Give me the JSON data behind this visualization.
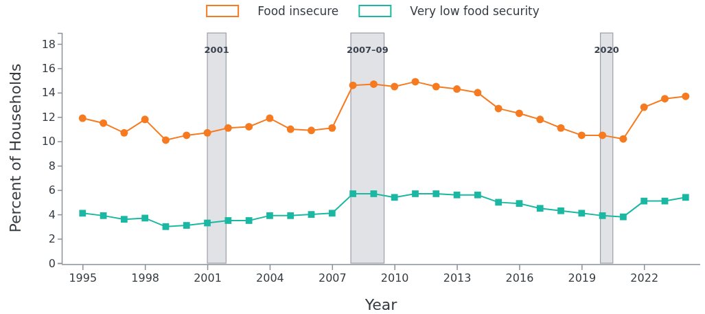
{
  "chart_data": {
    "type": "line",
    "xlabel": "Year",
    "ylabel": "Percent of Households",
    "x": [
      1995,
      1996,
      1997,
      1998,
      1999,
      2000,
      2001,
      2002,
      2003,
      2004,
      2005,
      2006,
      2007,
      2008,
      2009,
      2010,
      2011,
      2012,
      2013,
      2014,
      2015,
      2016,
      2017,
      2018,
      2019,
      2020,
      2021,
      2022,
      2023,
      2024
    ],
    "series": [
      {
        "name": "Food insecure",
        "color": "#f67a1f",
        "marker": "circle",
        "values": [
          11.9,
          11.5,
          10.7,
          11.8,
          10.1,
          10.5,
          10.7,
          11.1,
          11.2,
          11.9,
          11.0,
          10.9,
          11.1,
          14.6,
          14.7,
          14.5,
          14.9,
          14.5,
          14.3,
          14.0,
          12.7,
          12.3,
          11.8,
          11.1,
          10.5,
          10.5,
          10.2,
          12.8,
          13.5,
          13.7
        ]
      },
      {
        "name": "Very low food security",
        "color": "#1ab8a2",
        "marker": "square",
        "values": [
          4.1,
          3.9,
          3.6,
          3.7,
          3.0,
          3.1,
          3.3,
          3.5,
          3.5,
          3.9,
          3.9,
          4.0,
          4.1,
          5.7,
          5.7,
          5.4,
          5.7,
          5.7,
          5.6,
          5.6,
          5.0,
          4.9,
          4.5,
          4.3,
          4.1,
          3.9,
          3.8,
          5.1,
          5.1,
          5.4
        ]
      }
    ],
    "xlim": [
      1994,
      2024.7
    ],
    "xticks": [
      1995,
      1998,
      2001,
      2004,
      2007,
      2010,
      2013,
      2016,
      2019,
      2022
    ],
    "ylim": [
      0,
      18.9
    ],
    "yticks": [
      0,
      2,
      4,
      6,
      8,
      10,
      12,
      14,
      16,
      18
    ],
    "bands": [
      {
        "axis": "x",
        "from": 2001.0,
        "to": 2001.9,
        "label": "2001",
        "color": "#e1e2e5"
      },
      {
        "axis": "x",
        "from": 2007.9,
        "to": 2009.5,
        "label": "2007–09",
        "color": "#e1e2e5"
      },
      {
        "axis": "x",
        "from": 2019.9,
        "to": 2020.5,
        "label": "2020",
        "color": "#e1e2e5"
      }
    ],
    "grid": false,
    "legend": "top",
    "line_style": "solid"
  }
}
